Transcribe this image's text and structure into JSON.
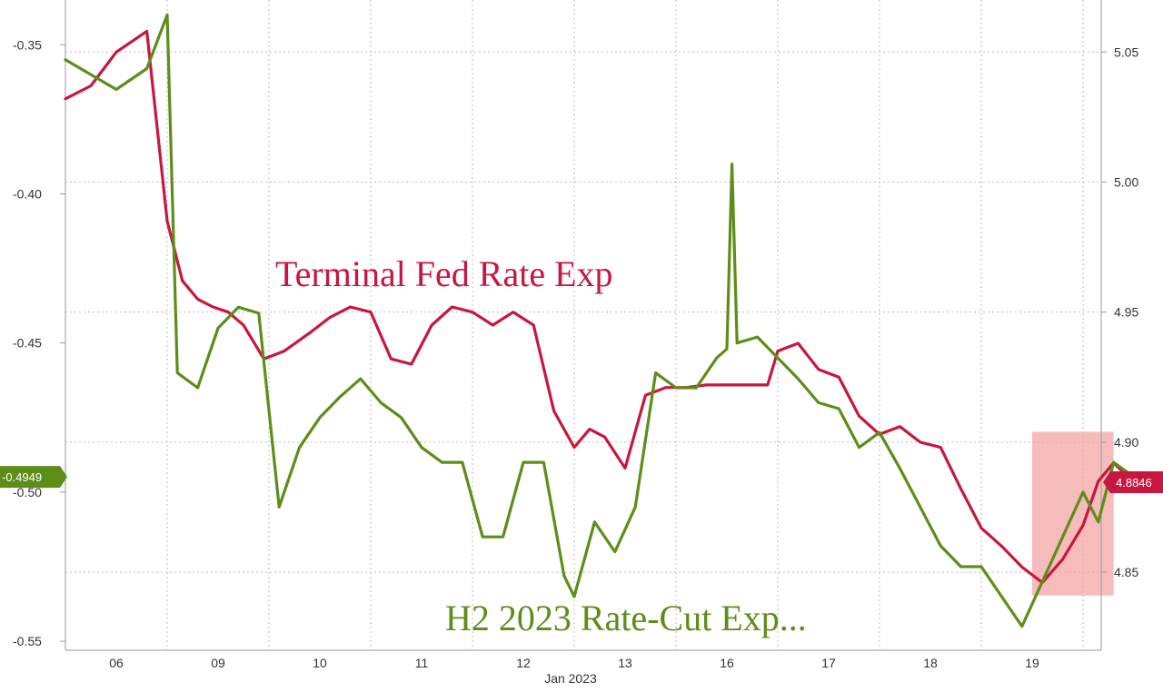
{
  "chart_data": {
    "type": "line",
    "title": "",
    "xlabel": "Jan 2023",
    "x_ticks": [
      "06",
      "09",
      "10",
      "11",
      "12",
      "13",
      "16",
      "17",
      "18",
      "19"
    ],
    "y_left": {
      "ticks": [
        "-0.35",
        "-0.40",
        "-0.45",
        "-0.50",
        "-0.55"
      ],
      "range": [
        -0.553,
        -0.335
      ]
    },
    "y_right": {
      "ticks": [
        "5.05",
        "5.00",
        "4.95",
        "4.90",
        "4.85"
      ],
      "range": [
        4.82,
        5.07
      ]
    },
    "grid": true,
    "colors": {
      "terminal": "#c8173f",
      "h2": "#5e8d1a",
      "highlight": "#f3a5a5"
    },
    "series": [
      {
        "name": "Terminal Fed Rate Exp",
        "axis": "right",
        "label": "Terminal Fed Rate Exp",
        "last_value_tag": "4.8846",
        "x": [
          0.0,
          0.25,
          0.5,
          0.8,
          1.0,
          1.15,
          1.3,
          1.45,
          1.6,
          1.75,
          1.95,
          2.15,
          2.4,
          2.6,
          2.8,
          3.0,
          3.2,
          3.4,
          3.6,
          3.8,
          4.0,
          4.2,
          4.4,
          4.6,
          4.8,
          5.0,
          5.15,
          5.3,
          5.5,
          5.7,
          5.9,
          6.1,
          6.3,
          6.5,
          6.7,
          6.9,
          7.0,
          7.2,
          7.4,
          7.6,
          7.8,
          8.0,
          8.2,
          8.4,
          8.6,
          8.8,
          9.0,
          9.2,
          9.4,
          9.6,
          9.8,
          10.0,
          10.15,
          10.3,
          10.5
        ],
        "y": [
          5.032,
          5.037,
          5.05,
          5.058,
          4.985,
          4.962,
          4.955,
          4.952,
          4.95,
          4.945,
          4.932,
          4.935,
          4.942,
          4.948,
          4.952,
          4.95,
          4.932,
          4.93,
          4.945,
          4.952,
          4.95,
          4.945,
          4.95,
          4.945,
          4.912,
          4.898,
          4.905,
          4.902,
          4.89,
          4.918,
          4.921,
          4.921,
          4.922,
          4.922,
          4.922,
          4.922,
          4.935,
          4.938,
          4.928,
          4.925,
          4.91,
          4.903,
          4.906,
          4.9,
          4.898,
          4.882,
          4.867,
          4.86,
          4.852,
          4.846,
          4.855,
          4.868,
          4.885,
          4.892,
          4.8846
        ]
      },
      {
        "name": "H2 2023 Rate-Cut Exp...",
        "axis": "left",
        "label": "H2 2023 Rate-Cut Exp...",
        "last_value_tag": "-0.4949",
        "x": [
          0.0,
          0.25,
          0.5,
          0.8,
          1.0,
          1.1,
          1.3,
          1.5,
          1.7,
          1.9,
          2.1,
          2.3,
          2.5,
          2.7,
          2.9,
          3.1,
          3.3,
          3.5,
          3.7,
          3.9,
          4.1,
          4.3,
          4.5,
          4.7,
          4.9,
          5.0,
          5.2,
          5.4,
          5.6,
          5.8,
          6.0,
          6.2,
          6.4,
          6.5,
          6.55,
          6.6,
          6.8,
          7.0,
          7.2,
          7.4,
          7.6,
          7.8,
          8.0,
          8.2,
          8.4,
          8.6,
          8.8,
          9.0,
          9.2,
          9.4,
          9.6,
          9.8,
          10.0,
          10.15,
          10.3,
          10.5
        ],
        "y": [
          -0.355,
          -0.36,
          -0.365,
          -0.358,
          -0.34,
          -0.46,
          -0.465,
          -0.445,
          -0.438,
          -0.44,
          -0.505,
          -0.485,
          -0.475,
          -0.468,
          -0.462,
          -0.47,
          -0.475,
          -0.485,
          -0.49,
          -0.49,
          -0.515,
          -0.515,
          -0.49,
          -0.49,
          -0.528,
          -0.535,
          -0.51,
          -0.52,
          -0.505,
          -0.46,
          -0.465,
          -0.465,
          -0.455,
          -0.452,
          -0.39,
          -0.45,
          -0.448,
          -0.455,
          -0.462,
          -0.47,
          -0.472,
          -0.485,
          -0.48,
          -0.492,
          -0.505,
          -0.518,
          -0.525,
          -0.525,
          -0.535,
          -0.545,
          -0.53,
          -0.515,
          -0.5,
          -0.51,
          -0.49,
          -0.4949
        ]
      }
    ],
    "highlight_box": {
      "x_range": [
        9.5,
        10.3
      ],
      "y_right_range": [
        4.841,
        4.904
      ]
    }
  }
}
